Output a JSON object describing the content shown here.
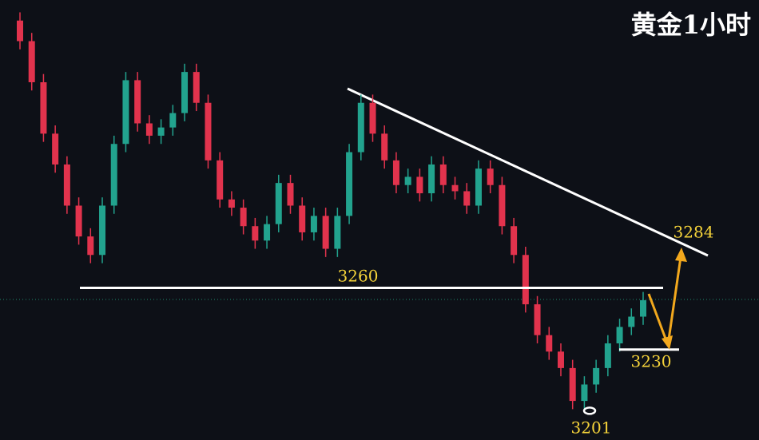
{
  "chart_data": {
    "type": "candlestick",
    "title": "黄金1小时",
    "ylim": [
      3186,
      3400
    ],
    "up_color": "#22a38e",
    "down_color": "#e2334d",
    "open": [
      3390,
      3380,
      3360,
      3335,
      3320,
      3300,
      3285,
      3276,
      3300,
      3330,
      3361,
      3340,
      3334,
      3338,
      3345,
      3365,
      3350,
      3322,
      3303,
      3299,
      3290,
      3283,
      3291,
      3311,
      3300,
      3287,
      3295,
      3279,
      3295,
      3326,
      3350,
      3335,
      3322,
      3310,
      3314,
      3306,
      3320,
      3310,
      3307,
      3300,
      3318,
      3310,
      3290,
      3276,
      3252,
      3237,
      3229,
      3221,
      3205,
      3213,
      3221,
      3233,
      3241,
      3246
    ],
    "high": [
      3394,
      3384,
      3364,
      3339,
      3324,
      3304,
      3289,
      3304,
      3334,
      3365,
      3365,
      3344,
      3342,
      3349,
      3369,
      3369,
      3354,
      3326,
      3307,
      3303,
      3294,
      3295,
      3315,
      3315,
      3304,
      3299,
      3299,
      3299,
      3330,
      3354,
      3354,
      3339,
      3326,
      3318,
      3318,
      3324,
      3324,
      3314,
      3311,
      3322,
      3322,
      3314,
      3294,
      3280,
      3256,
      3241,
      3233,
      3225,
      3217,
      3225,
      3237,
      3245,
      3250,
      3258
    ],
    "low": [
      3376,
      3356,
      3331,
      3316,
      3296,
      3281,
      3272,
      3272,
      3296,
      3326,
      3336,
      3330,
      3330,
      3334,
      3341,
      3346,
      3318,
      3299,
      3295,
      3286,
      3279,
      3279,
      3287,
      3296,
      3283,
      3283,
      3275,
      3275,
      3291,
      3322,
      3331,
      3318,
      3306,
      3306,
      3302,
      3302,
      3306,
      3303,
      3296,
      3296,
      3306,
      3286,
      3272,
      3248,
      3233,
      3225,
      3217,
      3201,
      3201,
      3209,
      3217,
      3229,
      3237,
      3242
    ],
    "close": [
      3380,
      3360,
      3335,
      3320,
      3300,
      3285,
      3276,
      3300,
      3330,
      3361,
      3340,
      3334,
      3338,
      3345,
      3365,
      3350,
      3322,
      3303,
      3299,
      3290,
      3283,
      3291,
      3311,
      3300,
      3287,
      3295,
      3279,
      3295,
      3326,
      3350,
      3335,
      3322,
      3310,
      3314,
      3306,
      3320,
      3310,
      3307,
      3300,
      3318,
      3310,
      3290,
      3276,
      3252,
      3237,
      3229,
      3221,
      3205,
      3213,
      3221,
      3233,
      3241,
      3246,
      3254
    ],
    "annotations": [
      3260,
      3284,
      3230,
      3201
    ]
  }
}
